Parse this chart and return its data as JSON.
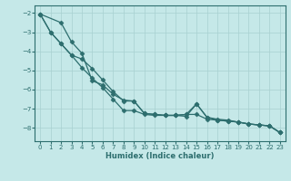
{
  "xlabel": "Humidex (Indice chaleur)",
  "background_color": "#c5e8e8",
  "grid_color": "#a8d0d0",
  "line_color": "#2d6e6e",
  "xlim": [
    -0.5,
    23.5
  ],
  "ylim": [
    -8.7,
    -1.6
  ],
  "yticks": [
    -8,
    -7,
    -6,
    -5,
    -4,
    -3,
    -2
  ],
  "xticks": [
    0,
    1,
    2,
    3,
    4,
    5,
    6,
    7,
    8,
    9,
    10,
    11,
    12,
    13,
    14,
    15,
    16,
    17,
    18,
    19,
    20,
    21,
    22,
    23
  ],
  "line1_x": [
    0,
    1,
    2,
    3,
    4,
    5,
    6,
    7,
    8,
    9,
    10,
    11,
    12,
    13,
    14,
    15,
    16,
    17,
    18,
    19,
    20,
    21,
    22,
    23
  ],
  "line1_y": [
    -2.05,
    -3.0,
    -3.6,
    -4.2,
    -4.85,
    -5.4,
    -5.9,
    -6.5,
    -7.1,
    -7.1,
    -7.3,
    -7.35,
    -7.35,
    -7.35,
    -7.3,
    -7.3,
    -7.55,
    -7.6,
    -7.65,
    -7.7,
    -7.8,
    -7.85,
    -7.9,
    -8.25
  ],
  "line2_x": [
    0,
    2,
    3,
    4,
    5,
    6,
    7,
    8,
    9,
    10,
    11,
    12,
    13,
    14,
    15,
    16,
    17,
    18,
    19,
    20,
    21,
    22,
    23
  ],
  "line2_y": [
    -2.05,
    -2.5,
    -3.5,
    -4.1,
    -5.55,
    -5.75,
    -6.25,
    -6.55,
    -6.6,
    -7.25,
    -7.3,
    -7.35,
    -7.35,
    -7.3,
    -6.75,
    -7.45,
    -7.55,
    -7.6,
    -7.7,
    -7.8,
    -7.85,
    -7.9,
    -8.25
  ],
  "line3_x": [
    0,
    1,
    2,
    3,
    4,
    5,
    6,
    7,
    8,
    9,
    10,
    11,
    12,
    13,
    14,
    15,
    16,
    17,
    18,
    19,
    20,
    21,
    22,
    23
  ],
  "line3_y": [
    -2.05,
    -3.0,
    -3.6,
    -4.2,
    -4.4,
    -4.9,
    -5.5,
    -6.1,
    -6.6,
    -6.6,
    -7.25,
    -7.3,
    -7.35,
    -7.35,
    -7.4,
    -6.75,
    -7.45,
    -7.6,
    -7.65,
    -7.7,
    -7.8,
    -7.85,
    -7.9,
    -8.25
  ]
}
